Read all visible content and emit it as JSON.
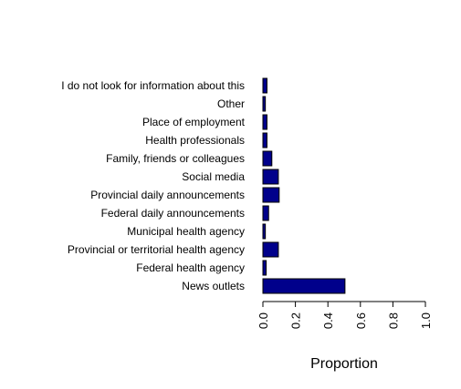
{
  "chart_data": {
    "type": "bar",
    "orientation": "horizontal",
    "categories": [
      "News outlets",
      "Federal health agency",
      "Provincial or territorial health agency",
      "Municipal health agency",
      "Federal daily announcements",
      "Provincial daily announcements",
      "Social media",
      "Family, friends or colleagues",
      "Health professionals",
      "Place of employment",
      "Other",
      "I do not look for information about this"
    ],
    "values": [
      0.505,
      0.02,
      0.095,
      0.015,
      0.035,
      0.1,
      0.095,
      0.055,
      0.025,
      0.025,
      0.015,
      0.025
    ],
    "title": "",
    "xlabel": "Proportion",
    "ylabel": "",
    "xlim": [
      0,
      1
    ],
    "x_ticks": [
      "0.0",
      "0.2",
      "0.4",
      "0.6",
      "0.8",
      "1.0"
    ],
    "bar_color": "#00008B",
    "grid": false,
    "legend": "none"
  }
}
